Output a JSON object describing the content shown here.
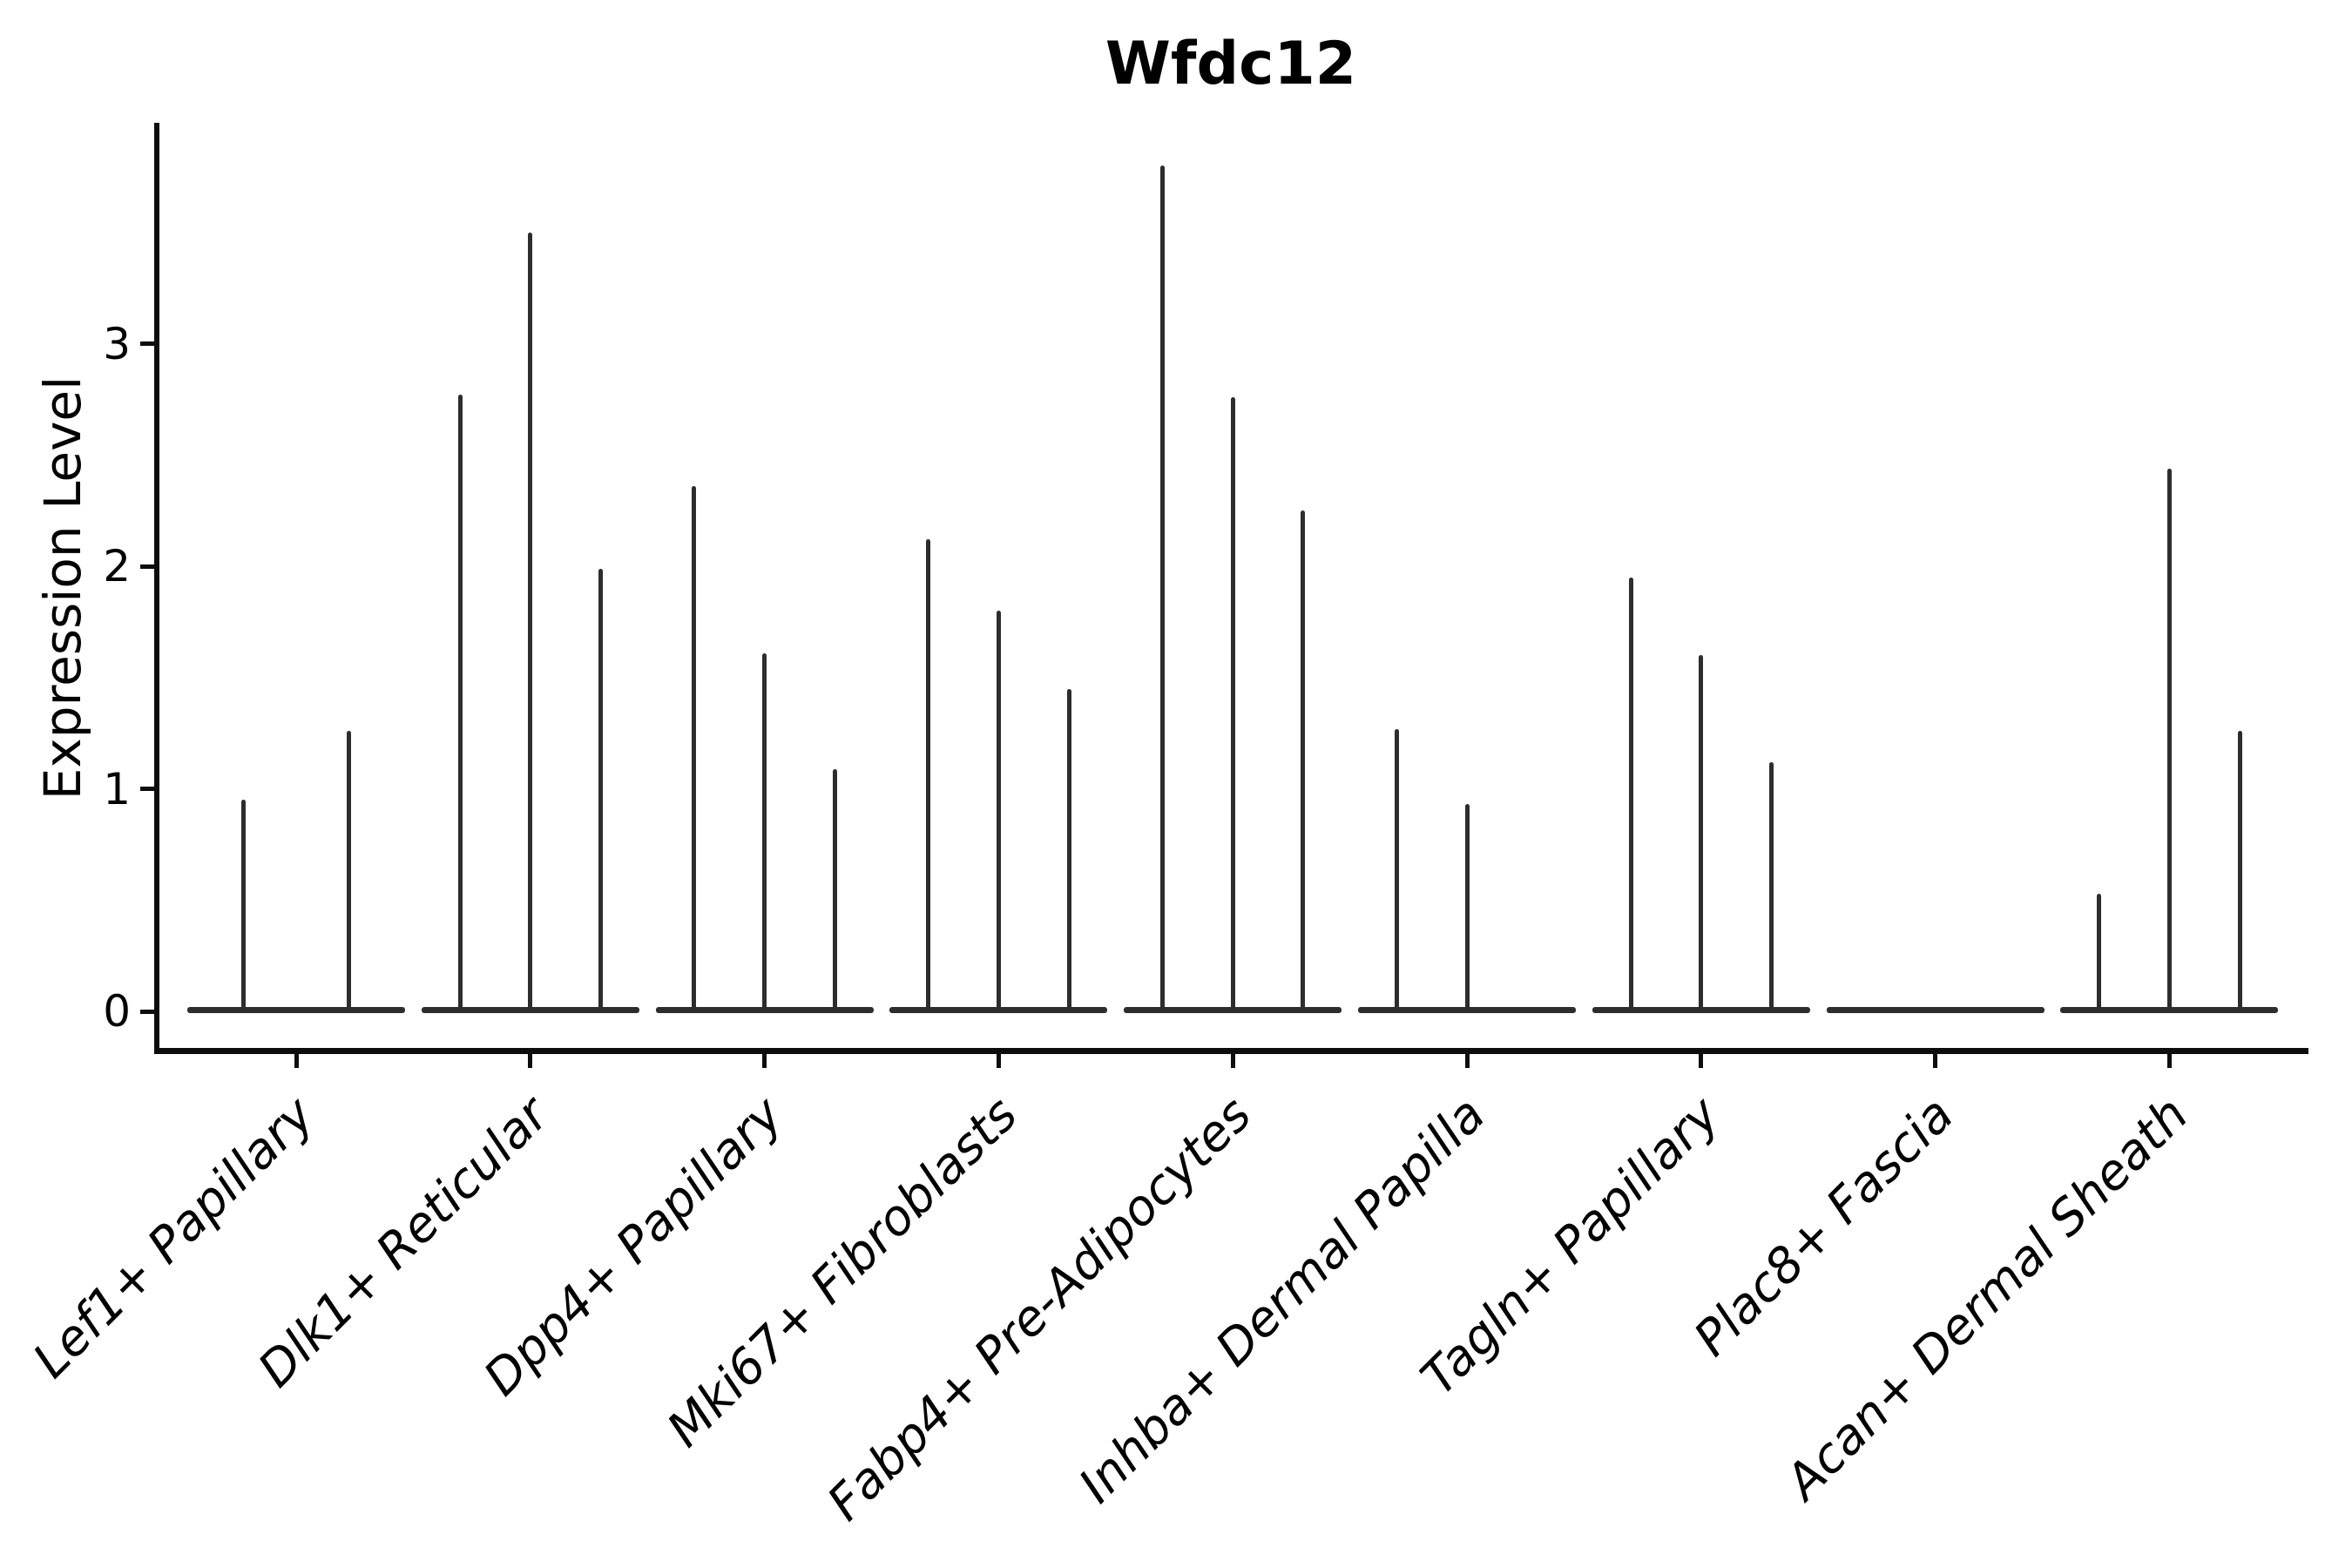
{
  "figure": {
    "title": "Wfdc12",
    "colors": {
      "background": "#ffffff",
      "axis": "#0d0d0d",
      "violin": "#2d2d2d",
      "text": "#000000"
    }
  },
  "chart_data": {
    "type": "violin",
    "title": "Wfdc12",
    "xlabel": "",
    "ylabel": "Expression Level",
    "yticks": [
      0,
      1,
      2,
      3
    ],
    "ytick_labels": [
      "0",
      "1",
      "2",
      "3"
    ],
    "ylim": [
      -0.2,
      4.0
    ],
    "grid": false,
    "legend": false,
    "spines": [
      "left",
      "bottom"
    ],
    "x_tick_label_style": "italic, rotated 45deg, right-anchored",
    "categories": [
      "Lef1+ Papillary",
      "Dlk1+ Reticular",
      "Dpp4+ Papillary",
      "Mki67+ Fibroblasts",
      "Fabp4+ Pre-Adipocytes",
      "Inhba+ Dermal Papilla",
      "Tagln+ Papillary",
      "Plac8+ Fascia",
      "Acan+ Dermal Sheath"
    ],
    "violins": [
      {
        "category": "Lef1+ Papillary",
        "spikes": [
          {
            "pos": -0.225,
            "peak": 0.95
          },
          {
            "pos": 0.225,
            "peak": 1.26
          }
        ]
      },
      {
        "category": "Dlk1+ Reticular",
        "spikes": [
          {
            "pos": -0.3,
            "peak": 2.77
          },
          {
            "pos": 0.0,
            "peak": 3.5
          },
          {
            "pos": 0.3,
            "peak": 1.99
          }
        ]
      },
      {
        "category": "Dpp4+ Papillary",
        "spikes": [
          {
            "pos": -0.3,
            "peak": 2.36
          },
          {
            "pos": 0.0,
            "peak": 1.61
          },
          {
            "pos": 0.3,
            "peak": 1.09
          }
        ]
      },
      {
        "category": "Mki67+ Fibroblasts",
        "spikes": [
          {
            "pos": -0.3,
            "peak": 2.12
          },
          {
            "pos": 0.0,
            "peak": 1.8
          },
          {
            "pos": 0.3,
            "peak": 1.45
          }
        ]
      },
      {
        "category": "Fabp4+ Pre-Adipocytes",
        "spikes": [
          {
            "pos": -0.3,
            "peak": 3.8
          },
          {
            "pos": 0.0,
            "peak": 2.76
          },
          {
            "pos": 0.3,
            "peak": 2.25
          }
        ]
      },
      {
        "category": "Inhba+ Dermal Papilla",
        "spikes": [
          {
            "pos": -0.3,
            "peak": 1.27
          },
          {
            "pos": 0.0,
            "peak": 0.93
          }
        ]
      },
      {
        "category": "Tagln+ Papillary",
        "spikes": [
          {
            "pos": -0.3,
            "peak": 1.95
          },
          {
            "pos": 0.0,
            "peak": 1.6
          },
          {
            "pos": 0.3,
            "peak": 1.12
          }
        ]
      },
      {
        "category": "Plac8+ Fascia",
        "spikes": []
      },
      {
        "category": "Acan+ Dermal Sheath",
        "spikes": [
          {
            "pos": -0.3,
            "peak": 0.53
          },
          {
            "pos": 0.0,
            "peak": 2.44
          },
          {
            "pos": 0.3,
            "peak": 1.26
          }
        ]
      }
    ],
    "note": "zero-inflated violins: wide flat base at 0 with thin density spikes rising to each peak value"
  }
}
